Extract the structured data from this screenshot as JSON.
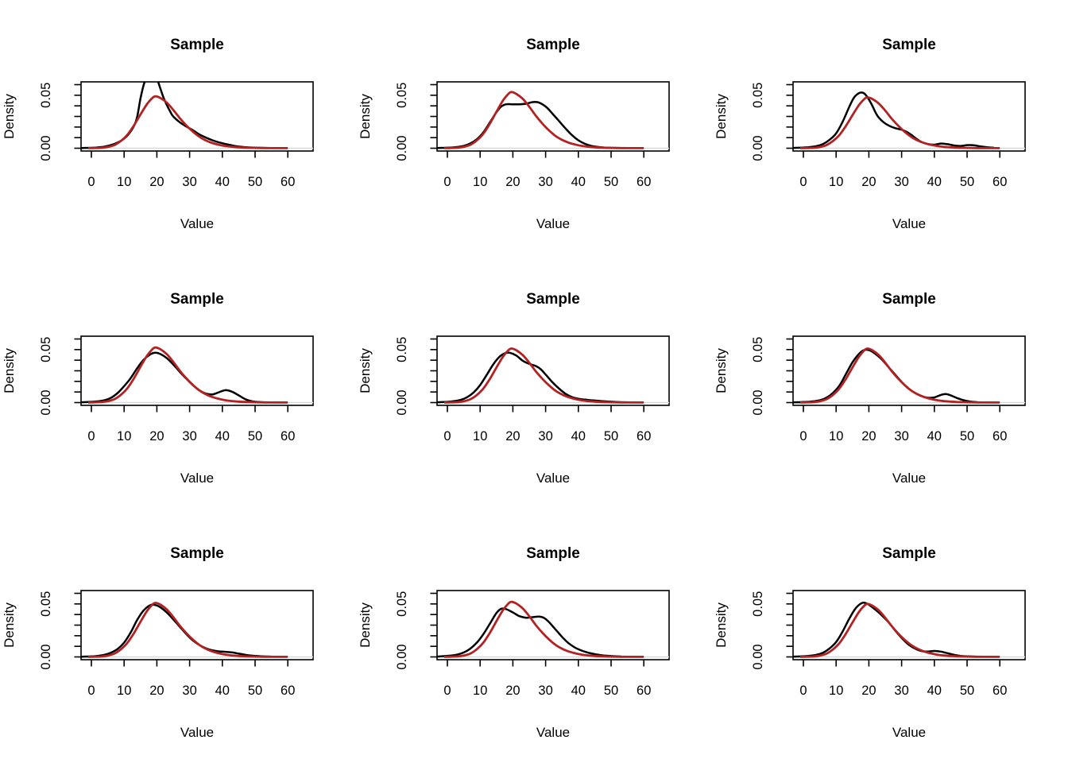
{
  "figure": {
    "background": "#ffffff",
    "rows": 3,
    "cols": 3
  },
  "chart_data": {
    "type": "line",
    "description": "3x3 grid of kernel density plots; each panel overlays an empirical density (black) with a fitted reference density (dark red)",
    "panel_title": "Sample",
    "xlabel": "Value",
    "ylabel": "Density",
    "xlim": [
      -3.15,
      67.7
    ],
    "ylim": [
      -0.0026,
      0.0653
    ],
    "x_ticks": [
      0,
      10,
      20,
      30,
      40,
      50,
      60
    ],
    "y_ticks": [
      0,
      0.01,
      0.02,
      0.03,
      0.04,
      0.05,
      0.06
    ],
    "y_tick_labels": [
      {
        "value": 0,
        "label": "0.00"
      },
      {
        "value": 0.05,
        "label": "0.05"
      }
    ],
    "grid": false,
    "legend": "none",
    "colors": {
      "empirical": "#000000",
      "fitted": "#b22222",
      "zero_line": "#d9d9d9",
      "box": "#000000"
    },
    "fitted_profile_relative": [
      [
        -1,
        0.0015
      ],
      [
        1,
        0.004
      ],
      [
        3,
        0.008
      ],
      [
        5,
        0.024
      ],
      [
        7,
        0.06
      ],
      [
        9,
        0.14
      ],
      [
        11,
        0.26
      ],
      [
        13,
        0.44
      ],
      [
        15,
        0.65
      ],
      [
        17,
        0.85
      ],
      [
        18.5,
        0.96
      ],
      [
        19.5,
        1.0
      ],
      [
        21,
        0.97
      ],
      [
        23,
        0.88
      ],
      [
        25,
        0.74
      ],
      [
        27,
        0.58
      ],
      [
        29,
        0.44
      ],
      [
        31,
        0.32
      ],
      [
        33,
        0.22
      ],
      [
        35,
        0.15
      ],
      [
        37,
        0.1
      ],
      [
        39,
        0.066
      ],
      [
        41,
        0.042
      ],
      [
        43,
        0.027
      ],
      [
        45,
        0.017
      ],
      [
        47,
        0.011
      ],
      [
        50,
        0.006
      ],
      [
        53,
        0.0035
      ],
      [
        56,
        0.002
      ],
      [
        58,
        0.0015
      ],
      [
        60,
        0.001
      ]
    ],
    "panels": [
      {
        "row": 1,
        "col": 1,
        "title": "Sample",
        "fitted_peak": 0.049,
        "empirical_points": [
          [
            -3,
            0.0002
          ],
          [
            1,
            0.0006
          ],
          [
            4,
            0.0015
          ],
          [
            7,
            0.004
          ],
          [
            9,
            0.007
          ],
          [
            11,
            0.012
          ],
          [
            13,
            0.021
          ],
          [
            14,
            0.03
          ],
          [
            15,
            0.047
          ],
          [
            16,
            0.06
          ],
          [
            17,
            0.068
          ],
          [
            18,
            0.072
          ],
          [
            19,
            0.071
          ],
          [
            20,
            0.066
          ],
          [
            21,
            0.057
          ],
          [
            22,
            0.048
          ],
          [
            23,
            0.041
          ],
          [
            24,
            0.035
          ],
          [
            25,
            0.03
          ],
          [
            27,
            0.0245
          ],
          [
            29,
            0.0205
          ],
          [
            31,
            0.017
          ],
          [
            33,
            0.013
          ],
          [
            35,
            0.01
          ],
          [
            37,
            0.0075
          ],
          [
            39,
            0.0055
          ],
          [
            41,
            0.004
          ],
          [
            43,
            0.0026
          ],
          [
            45,
            0.0016
          ],
          [
            47,
            0.001
          ],
          [
            50,
            0.0005
          ],
          [
            53,
            0.0003
          ],
          [
            56,
            0.0002
          ]
        ]
      },
      {
        "row": 1,
        "col": 2,
        "title": "Sample",
        "fitted_peak": 0.053,
        "empirical_points": [
          [
            -3,
            0.0002
          ],
          [
            2,
            0.0008
          ],
          [
            5,
            0.0022
          ],
          [
            7,
            0.0045
          ],
          [
            9,
            0.0085
          ],
          [
            11,
            0.015
          ],
          [
            13,
            0.0245
          ],
          [
            15,
            0.034
          ],
          [
            16.5,
            0.0395
          ],
          [
            18,
            0.0415
          ],
          [
            20,
            0.0415
          ],
          [
            22,
            0.0415
          ],
          [
            24,
            0.042
          ],
          [
            26,
            0.0435
          ],
          [
            27.5,
            0.0435
          ],
          [
            29,
            0.0415
          ],
          [
            30.5,
            0.038
          ],
          [
            32,
            0.033
          ],
          [
            34,
            0.026
          ],
          [
            36,
            0.019
          ],
          [
            38,
            0.0125
          ],
          [
            40,
            0.0075
          ],
          [
            42,
            0.0042
          ],
          [
            44,
            0.0022
          ],
          [
            46,
            0.0012
          ],
          [
            48,
            0.0006
          ],
          [
            50,
            0.0004
          ],
          [
            53,
            0.0002
          ]
        ]
      },
      {
        "row": 1,
        "col": 3,
        "title": "Sample",
        "fitted_peak": 0.048,
        "empirical_points": [
          [
            -3,
            0.0003
          ],
          [
            1,
            0.0008
          ],
          [
            4,
            0.002
          ],
          [
            6,
            0.004
          ],
          [
            8,
            0.008
          ],
          [
            10,
            0.014
          ],
          [
            12,
            0.025
          ],
          [
            14,
            0.039
          ],
          [
            15.5,
            0.048
          ],
          [
            17,
            0.052
          ],
          [
            18,
            0.0525
          ],
          [
            19,
            0.0505
          ],
          [
            20,
            0.046
          ],
          [
            21,
            0.0405
          ],
          [
            22,
            0.034
          ],
          [
            23,
            0.029
          ],
          [
            24.5,
            0.0245
          ],
          [
            26,
            0.0215
          ],
          [
            28,
            0.019
          ],
          [
            30,
            0.0175
          ],
          [
            31.5,
            0.0155
          ],
          [
            33,
            0.0125
          ],
          [
            34.5,
            0.009
          ],
          [
            36,
            0.006
          ],
          [
            38,
            0.004
          ],
          [
            40,
            0.0034
          ],
          [
            42,
            0.0044
          ],
          [
            44,
            0.0038
          ],
          [
            46,
            0.0026
          ],
          [
            48,
            0.0022
          ],
          [
            50,
            0.0029
          ],
          [
            52,
            0.0028
          ],
          [
            54,
            0.0018
          ],
          [
            56,
            0.001
          ],
          [
            58,
            0.0005
          ]
        ]
      },
      {
        "row": 2,
        "col": 1,
        "title": "Sample",
        "fitted_peak": 0.052,
        "empirical_points": [
          [
            -3,
            0.0003
          ],
          [
            1,
            0.0009
          ],
          [
            4,
            0.0022
          ],
          [
            6,
            0.0045
          ],
          [
            8,
            0.009
          ],
          [
            10,
            0.0155
          ],
          [
            12,
            0.023
          ],
          [
            14,
            0.0325
          ],
          [
            16,
            0.0405
          ],
          [
            18,
            0.0455
          ],
          [
            19.5,
            0.047
          ],
          [
            21,
            0.046
          ],
          [
            23,
            0.042
          ],
          [
            25,
            0.036
          ],
          [
            27,
            0.029
          ],
          [
            29,
            0.0225
          ],
          [
            31,
            0.0165
          ],
          [
            33,
            0.0115
          ],
          [
            35,
            0.0085
          ],
          [
            37,
            0.0077
          ],
          [
            39,
            0.0098
          ],
          [
            41,
            0.0117
          ],
          [
            43,
            0.0102
          ],
          [
            45,
            0.0068
          ],
          [
            47,
            0.0032
          ],
          [
            49,
            0.0013
          ],
          [
            51,
            0.0005
          ],
          [
            53,
            0.0002
          ]
        ]
      },
      {
        "row": 2,
        "col": 2,
        "title": "Sample",
        "fitted_peak": 0.051,
        "empirical_points": [
          [
            -3,
            0.0003
          ],
          [
            1,
            0.001
          ],
          [
            4,
            0.0025
          ],
          [
            6,
            0.005
          ],
          [
            8,
            0.0095
          ],
          [
            10,
            0.0165
          ],
          [
            12,
            0.026
          ],
          [
            14,
            0.036
          ],
          [
            16,
            0.0435
          ],
          [
            17.5,
            0.0465
          ],
          [
            19,
            0.047
          ],
          [
            21,
            0.0445
          ],
          [
            23,
            0.0395
          ],
          [
            25,
            0.0365
          ],
          [
            27,
            0.0345
          ],
          [
            28.5,
            0.0315
          ],
          [
            30,
            0.0265
          ],
          [
            32,
            0.0195
          ],
          [
            34,
            0.0135
          ],
          [
            36,
            0.0085
          ],
          [
            38,
            0.0052
          ],
          [
            40,
            0.0036
          ],
          [
            42,
            0.0028
          ],
          [
            44,
            0.0022
          ],
          [
            46,
            0.0017
          ],
          [
            48,
            0.0012
          ],
          [
            50,
            0.0008
          ],
          [
            53,
            0.0004
          ],
          [
            56,
            0.0002
          ]
        ]
      },
      {
        "row": 2,
        "col": 3,
        "title": "Sample",
        "fitted_peak": 0.051,
        "empirical_points": [
          [
            -3,
            0.0002
          ],
          [
            2,
            0.0008
          ],
          [
            5,
            0.0022
          ],
          [
            7,
            0.0045
          ],
          [
            9,
            0.009
          ],
          [
            11,
            0.016
          ],
          [
            13,
            0.027
          ],
          [
            15,
            0.038
          ],
          [
            17,
            0.046
          ],
          [
            18.5,
            0.0495
          ],
          [
            20,
            0.0495
          ],
          [
            22,
            0.046
          ],
          [
            24,
            0.0405
          ],
          [
            26,
            0.0335
          ],
          [
            28,
            0.0265
          ],
          [
            30,
            0.0195
          ],
          [
            32,
            0.0135
          ],
          [
            34,
            0.0092
          ],
          [
            36,
            0.0062
          ],
          [
            38,
            0.0046
          ],
          [
            40,
            0.0049
          ],
          [
            42,
            0.0072
          ],
          [
            43.5,
            0.008
          ],
          [
            45,
            0.0068
          ],
          [
            47,
            0.0042
          ],
          [
            49,
            0.0022
          ],
          [
            51,
            0.001
          ],
          [
            53,
            0.0004
          ]
        ]
      },
      {
        "row": 3,
        "col": 1,
        "title": "Sample",
        "fitted_peak": 0.051,
        "empirical_points": [
          [
            -3,
            0.0002
          ],
          [
            1,
            0.0007
          ],
          [
            4,
            0.002
          ],
          [
            6,
            0.004
          ],
          [
            8,
            0.0075
          ],
          [
            10,
            0.0135
          ],
          [
            12,
            0.023
          ],
          [
            14,
            0.035
          ],
          [
            16,
            0.044
          ],
          [
            18,
            0.0488
          ],
          [
            19.5,
            0.049
          ],
          [
            21,
            0.047
          ],
          [
            23,
            0.042
          ],
          [
            25,
            0.0355
          ],
          [
            27,
            0.0285
          ],
          [
            29,
            0.0215
          ],
          [
            31,
            0.0155
          ],
          [
            33,
            0.0112
          ],
          [
            35,
            0.0082
          ],
          [
            37,
            0.0062
          ],
          [
            39,
            0.0052
          ],
          [
            41,
            0.0048
          ],
          [
            43,
            0.0042
          ],
          [
            45,
            0.0031
          ],
          [
            47,
            0.002
          ],
          [
            49,
            0.0012
          ],
          [
            52,
            0.0006
          ],
          [
            55,
            0.0003
          ]
        ]
      },
      {
        "row": 3,
        "col": 2,
        "title": "Sample",
        "fitted_peak": 0.052,
        "empirical_points": [
          [
            -3,
            0.0003
          ],
          [
            1,
            0.0012
          ],
          [
            3,
            0.0022
          ],
          [
            5,
            0.0042
          ],
          [
            7,
            0.0078
          ],
          [
            9,
            0.0135
          ],
          [
            11,
            0.0215
          ],
          [
            13,
            0.0315
          ],
          [
            15,
            0.0415
          ],
          [
            16.5,
            0.0455
          ],
          [
            18,
            0.045
          ],
          [
            20,
            0.042
          ],
          [
            22,
            0.0385
          ],
          [
            24,
            0.037
          ],
          [
            26,
            0.0375
          ],
          [
            28,
            0.038
          ],
          [
            29.5,
            0.0368
          ],
          [
            31,
            0.033
          ],
          [
            33,
            0.026
          ],
          [
            35,
            0.019
          ],
          [
            37,
            0.013
          ],
          [
            39,
            0.0088
          ],
          [
            41,
            0.006
          ],
          [
            43,
            0.004
          ],
          [
            45,
            0.0026
          ],
          [
            47,
            0.0016
          ],
          [
            50,
            0.0008
          ],
          [
            53,
            0.0004
          ]
        ]
      },
      {
        "row": 3,
        "col": 3,
        "title": "Sample",
        "fitted_peak": 0.05,
        "empirical_points": [
          [
            -3,
            0.0002
          ],
          [
            1,
            0.0008
          ],
          [
            4,
            0.002
          ],
          [
            6,
            0.004
          ],
          [
            8,
            0.008
          ],
          [
            10,
            0.014
          ],
          [
            12,
            0.024
          ],
          [
            14,
            0.036
          ],
          [
            16,
            0.046
          ],
          [
            18,
            0.051
          ],
          [
            19.5,
            0.0502
          ],
          [
            21,
            0.047
          ],
          [
            23,
            0.042
          ],
          [
            25,
            0.036
          ],
          [
            26.5,
            0.031
          ],
          [
            28,
            0.025
          ],
          [
            30,
            0.018
          ],
          [
            32,
            0.012
          ],
          [
            34,
            0.008
          ],
          [
            36,
            0.0056
          ],
          [
            38,
            0.005
          ],
          [
            40,
            0.0056
          ],
          [
            42,
            0.005
          ],
          [
            44,
            0.0035
          ],
          [
            46,
            0.002
          ],
          [
            48,
            0.001
          ],
          [
            50,
            0.0005
          ],
          [
            53,
            0.0002
          ]
        ]
      }
    ]
  }
}
